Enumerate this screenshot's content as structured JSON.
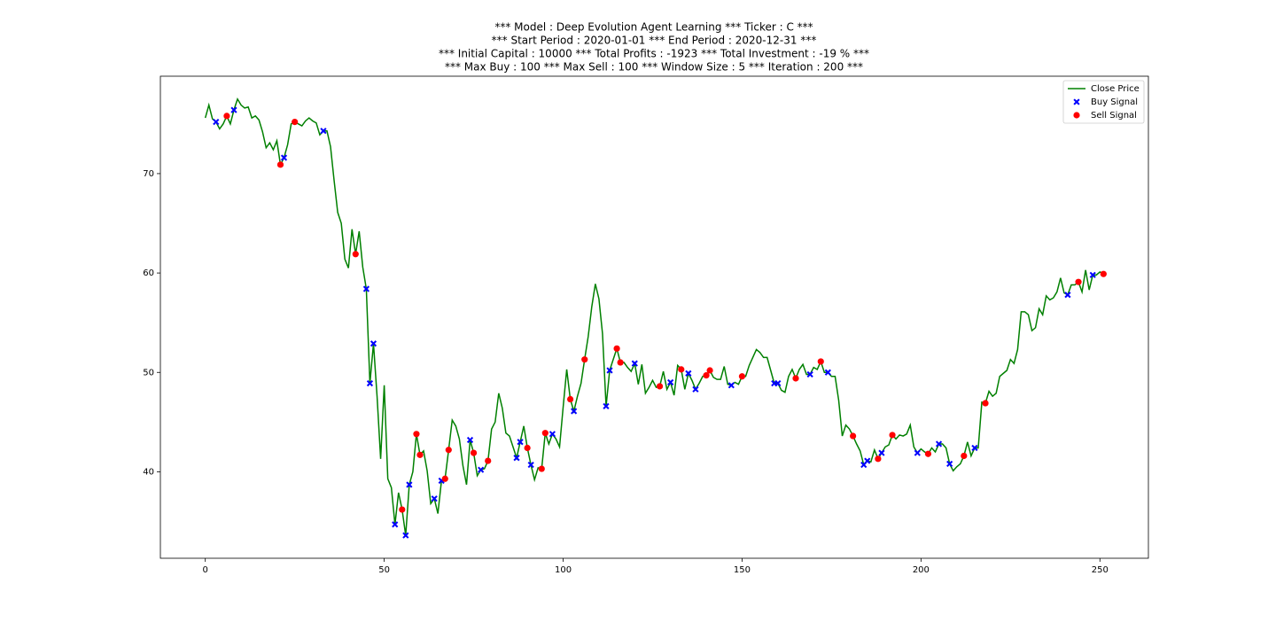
{
  "chart_data": {
    "type": "line",
    "title": [
      "*** Model : Deep Evolution Agent Learning *** Ticker : C ***",
      "*** Start Period : 2020-01-01 *** End Period : 2020-12-31 ***",
      "*** Initial Capital : 10000 *** Total Profits : -1923 *** Total Investment : -19 % ***",
      "*** Max Buy : 100 *** Max Sell : 100 *** Window Size : 5 *** Iteration : 200 ***"
    ],
    "xlim": [
      -12.55,
      263.55
    ],
    "ylim": [
      31.3,
      79.8
    ],
    "xticks": [
      0,
      50,
      100,
      150,
      200,
      250
    ],
    "yticks": [
      40,
      50,
      60,
      70
    ],
    "legend": "upper right",
    "series": [
      {
        "name": "Close Price",
        "type": "line",
        "color": "#008000",
        "x": [
          0,
          1,
          2,
          3,
          4,
          5,
          6,
          7,
          8,
          9,
          10,
          11,
          12,
          13,
          14,
          15,
          16,
          17,
          18,
          19,
          20,
          21,
          22,
          23,
          24,
          25,
          26,
          27,
          28,
          29,
          30,
          31,
          32,
          33,
          34,
          35,
          36,
          37,
          38,
          39,
          40,
          41,
          42,
          43,
          44,
          45,
          46,
          47,
          48,
          49,
          50,
          51,
          52,
          53,
          54,
          55,
          56,
          57,
          58,
          59,
          60,
          61,
          62,
          63,
          64,
          65,
          66,
          67,
          68,
          69,
          70,
          71,
          72,
          73,
          74,
          75,
          76,
          77,
          78,
          79,
          80,
          81,
          82,
          83,
          84,
          85,
          86,
          87,
          88,
          89,
          90,
          91,
          92,
          93,
          94,
          95,
          96,
          97,
          98,
          99,
          100,
          101,
          102,
          103,
          104,
          105,
          106,
          107,
          108,
          109,
          110,
          111,
          112,
          113,
          114,
          115,
          116,
          117,
          118,
          119,
          120,
          121,
          122,
          123,
          124,
          125,
          126,
          127,
          128,
          129,
          130,
          131,
          132,
          133,
          134,
          135,
          136,
          137,
          138,
          139,
          140,
          141,
          142,
          143,
          144,
          145,
          146,
          147,
          148,
          149,
          150,
          151,
          152,
          153,
          154,
          155,
          156,
          157,
          158,
          159,
          160,
          161,
          162,
          163,
          164,
          165,
          166,
          167,
          168,
          169,
          170,
          171,
          172,
          173,
          174,
          175,
          176,
          177,
          178,
          179,
          180,
          181,
          182,
          183,
          184,
          185,
          186,
          187,
          188,
          189,
          190,
          191,
          192,
          193,
          194,
          195,
          196,
          197,
          198,
          199,
          200,
          201,
          202,
          203,
          204,
          205,
          206,
          207,
          208,
          209,
          210,
          211,
          212,
          213,
          214,
          215,
          216,
          217,
          218,
          219,
          220,
          221,
          222,
          223,
          224,
          225,
          226,
          227,
          228,
          229,
          230,
          231,
          232,
          233,
          234,
          235,
          236,
          237,
          238,
          239,
          240,
          241,
          242,
          243,
          244,
          245,
          246,
          247,
          248,
          249,
          250,
          251
        ],
        "values": [
          75.6,
          76.9,
          75.5,
          75.2,
          74.5,
          75.0,
          75.8,
          75.0,
          76.4,
          77.5,
          76.9,
          76.6,
          76.7,
          75.6,
          75.8,
          75.4,
          74.2,
          72.6,
          73.1,
          72.4,
          73.3,
          70.9,
          71.6,
          72.9,
          75.0,
          75.2,
          75.0,
          74.8,
          75.3,
          75.6,
          75.3,
          75.1,
          73.9,
          74.3,
          74.3,
          72.7,
          69.3,
          66.1,
          65.0,
          61.4,
          60.5,
          64.4,
          61.9,
          64.2,
          60.6,
          58.4,
          48.9,
          52.9,
          47.6,
          41.3,
          48.7,
          39.3,
          38.4,
          34.7,
          37.9,
          36.2,
          33.6,
          38.7,
          40.0,
          43.8,
          41.7,
          42.1,
          40.1,
          36.8,
          37.3,
          35.8,
          39.1,
          39.3,
          42.2,
          45.2,
          44.6,
          43.3,
          40.6,
          38.7,
          43.2,
          41.9,
          39.6,
          40.2,
          40.3,
          41.1,
          44.3,
          45.0,
          47.9,
          46.4,
          43.9,
          43.6,
          42.5,
          41.4,
          43.0,
          44.6,
          42.4,
          40.7,
          39.2,
          40.4,
          40.3,
          43.9,
          42.8,
          43.8,
          43.3,
          42.5,
          46.5,
          50.3,
          47.3,
          46.1,
          47.6,
          48.9,
          51.3,
          53.6,
          56.6,
          58.9,
          57.4,
          53.9,
          46.6,
          50.2,
          51.3,
          52.4,
          51.0,
          51.0,
          50.5,
          50.1,
          50.9,
          48.8,
          50.8,
          47.9,
          48.5,
          49.2,
          48.5,
          48.6,
          50.1,
          48.3,
          49.0,
          47.7,
          50.7,
          50.3,
          48.3,
          49.9,
          49.2,
          48.3,
          48.9,
          49.6,
          49.7,
          50.2,
          49.5,
          49.3,
          49.3,
          50.6,
          48.8,
          48.7,
          49.0,
          48.8,
          49.6,
          49.6,
          50.7,
          51.5,
          52.3,
          52.0,
          51.5,
          51.5,
          50.2,
          48.9,
          48.9,
          48.2,
          48.0,
          49.6,
          50.3,
          49.4,
          50.3,
          50.8,
          49.8,
          49.8,
          50.5,
          50.3,
          51.1,
          50.0,
          50.0,
          49.6,
          49.6,
          47.2,
          43.6,
          44.7,
          44.3,
          43.6,
          42.8,
          42.1,
          40.7,
          41.1,
          41.0,
          42.2,
          41.3,
          41.9,
          42.5,
          42.7,
          43.7,
          43.3,
          43.7,
          43.6,
          43.8,
          44.7,
          42.5,
          41.9,
          42.3,
          42.0,
          41.8,
          42.4,
          42.0,
          42.8,
          42.8,
          42.4,
          40.8,
          40.1,
          40.5,
          40.8,
          41.6,
          43.0,
          41.6,
          42.4,
          42.4,
          47.0,
          46.9,
          48.1,
          47.6,
          47.9,
          49.6,
          49.9,
          50.2,
          51.3,
          50.9,
          52.3,
          56.1,
          56.1,
          55.8,
          54.2,
          54.5,
          56.4,
          55.8,
          57.7,
          57.3,
          57.5,
          58.1,
          59.5,
          58.0,
          57.8,
          58.8,
          58.8,
          59.1,
          58.1,
          60.3,
          58.3,
          59.8,
          59.8,
          60.1,
          59.9
        ]
      },
      {
        "name": "Buy Signal",
        "type": "scatter",
        "marker": "X",
        "color": "#0000ff",
        "x": [
          3,
          8,
          22,
          33,
          45,
          46,
          47,
          53,
          56,
          57,
          64,
          66,
          74,
          77,
          87,
          88,
          91,
          97,
          103,
          112,
          113,
          120,
          130,
          135,
          137,
          147,
          159,
          160,
          169,
          174,
          184,
          185,
          189,
          199,
          205,
          208,
          215,
          241,
          248
        ],
        "values": [
          75.2,
          76.4,
          71.6,
          74.3,
          58.4,
          48.9,
          52.9,
          34.7,
          33.6,
          38.7,
          37.3,
          39.1,
          43.2,
          40.2,
          41.4,
          43.0,
          40.7,
          43.8,
          46.1,
          46.6,
          50.2,
          50.9,
          49.0,
          49.9,
          48.3,
          48.7,
          48.9,
          48.9,
          49.8,
          50.0,
          40.7,
          41.1,
          41.9,
          41.9,
          42.8,
          40.8,
          42.4,
          57.8,
          59.8
        ]
      },
      {
        "name": "Sell Signal",
        "type": "scatter",
        "marker": "o",
        "color": "#ff0000",
        "x": [
          6,
          21,
          25,
          42,
          55,
          59,
          60,
          67,
          68,
          75,
          79,
          90,
          94,
          95,
          102,
          106,
          115,
          116,
          127,
          133,
          140,
          141,
          150,
          165,
          172,
          181,
          188,
          192,
          202,
          212,
          218,
          244,
          251
        ],
        "values": [
          75.8,
          70.9,
          75.2,
          61.9,
          36.2,
          43.8,
          41.7,
          39.3,
          42.2,
          41.9,
          41.1,
          42.4,
          40.3,
          43.9,
          47.3,
          51.3,
          52.4,
          51.0,
          48.6,
          50.3,
          49.7,
          50.2,
          49.6,
          49.4,
          51.1,
          43.6,
          41.3,
          43.7,
          41.8,
          41.6,
          46.9,
          59.1,
          59.9
        ]
      }
    ]
  }
}
